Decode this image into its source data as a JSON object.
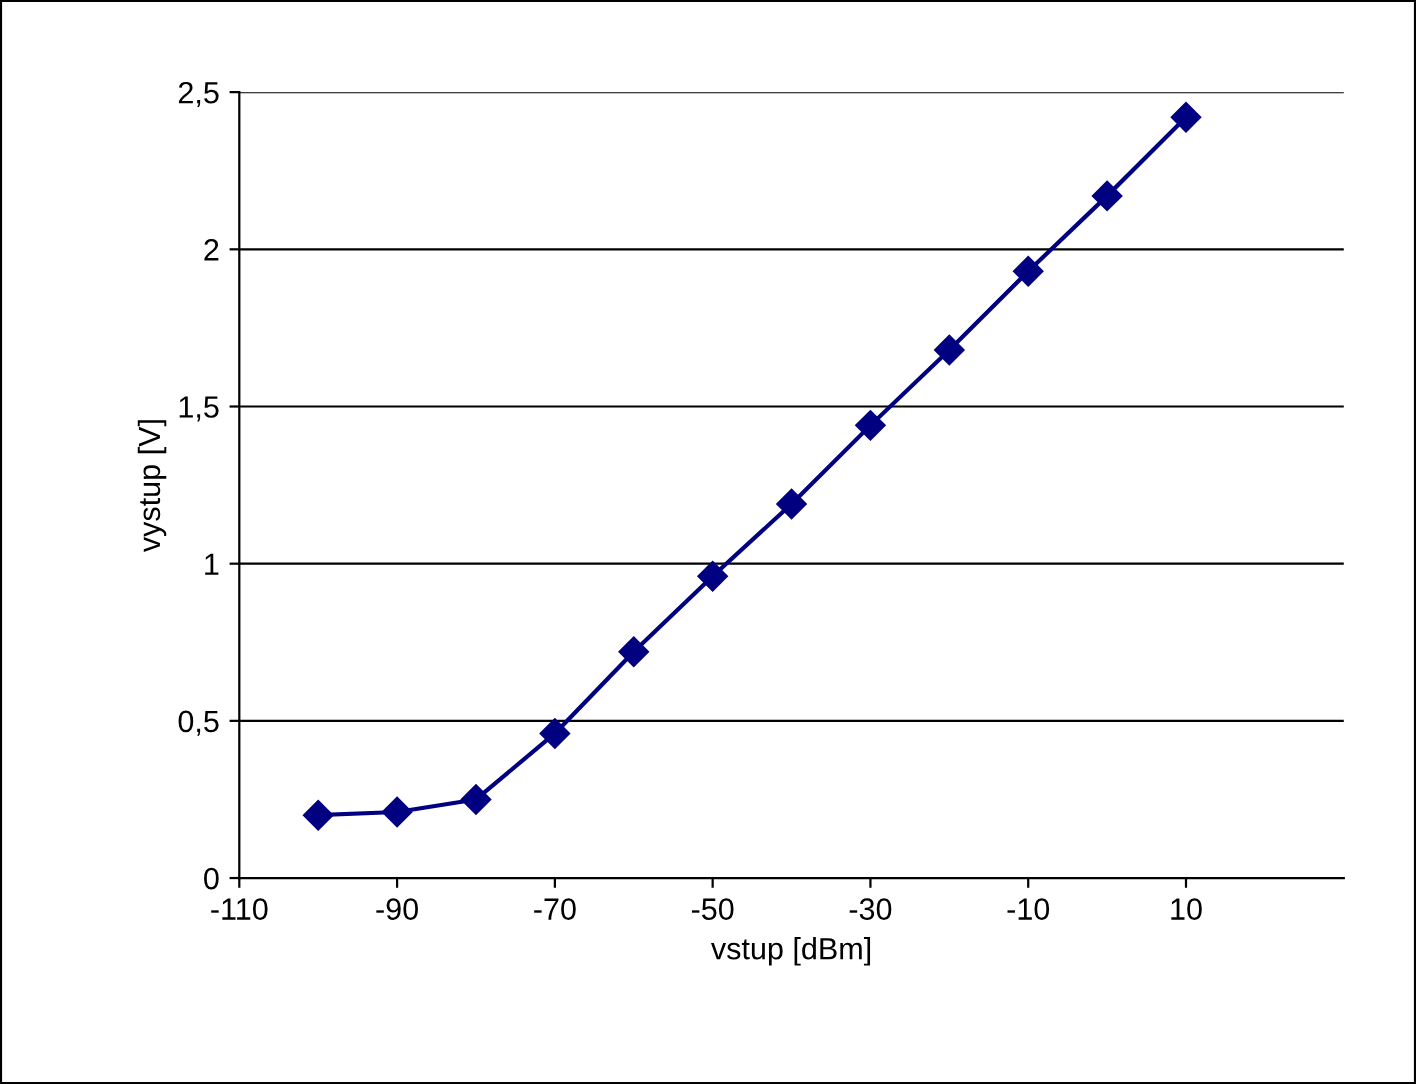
{
  "chart_data": {
    "type": "line",
    "xlabel": "vstup [dBm]",
    "ylabel": "vystup [V]",
    "x": [
      -100,
      -90,
      -80,
      -70,
      -60,
      -50,
      -40,
      -30,
      -20,
      -10,
      0,
      10
    ],
    "series": [
      {
        "color": "#000080",
        "values": [
          0.2,
          0.21,
          0.25,
          0.46,
          0.72,
          0.96,
          1.19,
          1.44,
          1.68,
          1.93,
          2.17,
          2.42
        ]
      }
    ],
    "xlim": [
      -110,
      30
    ],
    "xticks": [
      -110,
      -90,
      -70,
      -50,
      -30,
      -10,
      10
    ],
    "ylim": [
      0,
      2.5
    ],
    "yticks": [
      {
        "value": 0,
        "label": "0"
      },
      {
        "value": 0.5,
        "label": "0,5"
      },
      {
        "value": 1,
        "label": "1"
      },
      {
        "value": 1.5,
        "label": "1,5"
      },
      {
        "value": 2,
        "label": "2"
      },
      {
        "value": 2.5,
        "label": "2,5"
      }
    ],
    "grid": "y",
    "marker": "diamond",
    "line_style": "solid",
    "legend": false
  }
}
